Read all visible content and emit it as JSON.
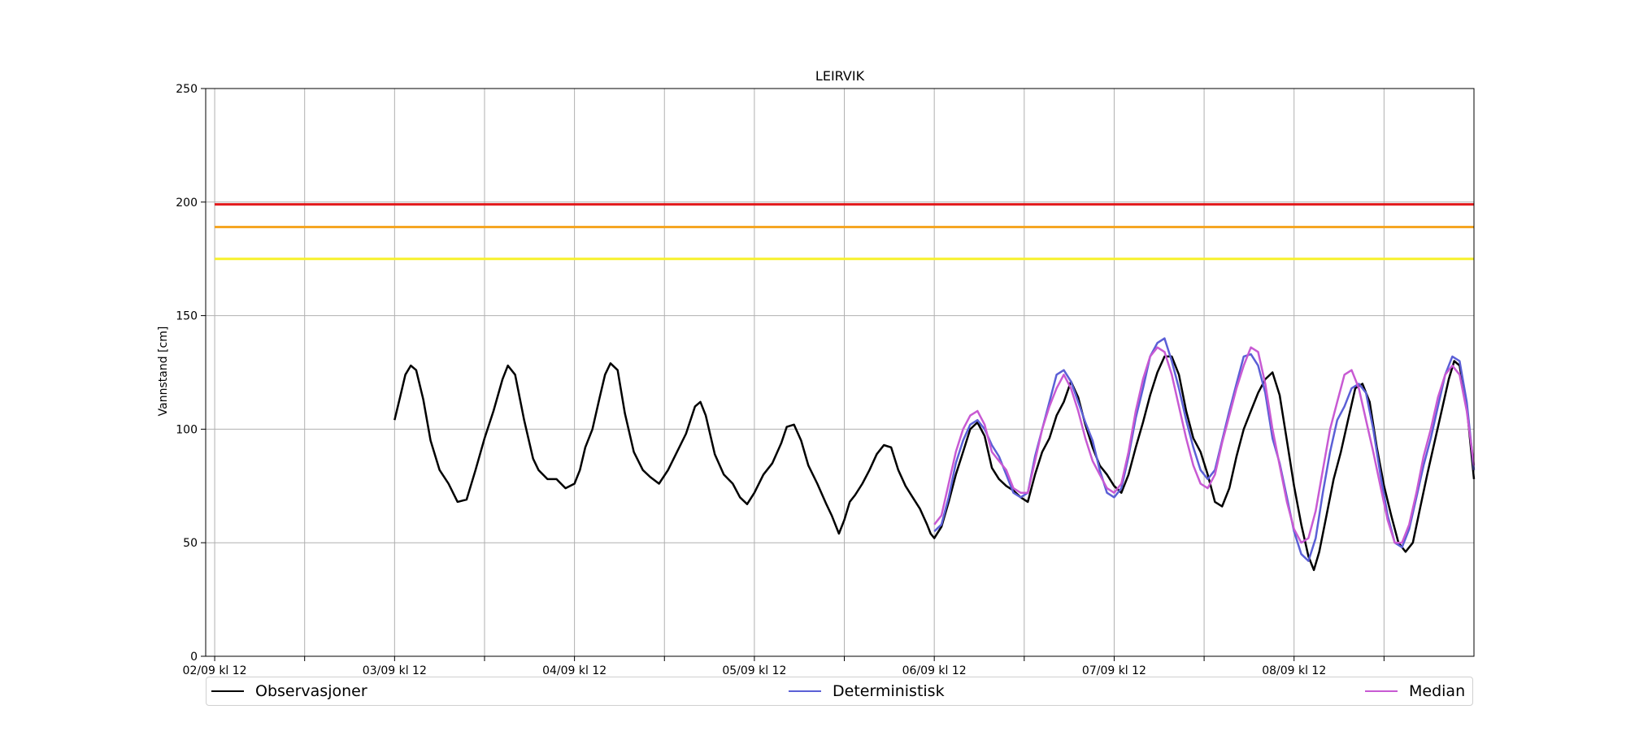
{
  "chart_data": {
    "type": "line",
    "title": "LEIRVIK",
    "xlabel": "",
    "ylabel": "Vannstand [cm]",
    "ylim": [
      0,
      250
    ],
    "yticks": [
      0,
      50,
      100,
      150,
      200,
      250
    ],
    "xlim": [
      -0.05,
      7.0
    ],
    "xticks": [
      {
        "x": 0.0,
        "label": "02/09 kl 12"
      },
      {
        "x": 0.5,
        "label": ""
      },
      {
        "x": 1.0,
        "label": "03/09 kl 12"
      },
      {
        "x": 1.5,
        "label": ""
      },
      {
        "x": 2.0,
        "label": "04/09 kl 12"
      },
      {
        "x": 2.5,
        "label": ""
      },
      {
        "x": 3.0,
        "label": "05/09 kl 12"
      },
      {
        "x": 3.5,
        "label": ""
      },
      {
        "x": 4.0,
        "label": "06/09 kl 12"
      },
      {
        "x": 4.5,
        "label": ""
      },
      {
        "x": 5.0,
        "label": "07/09 kl 12"
      },
      {
        "x": 5.5,
        "label": ""
      },
      {
        "x": 6.0,
        "label": "08/09 kl 12"
      },
      {
        "x": 6.5,
        "label": ""
      }
    ],
    "grid": true,
    "legend_position": "bottom",
    "thresholds": [
      {
        "y": 199,
        "color": "#e31a1c"
      },
      {
        "y": 189,
        "color": "#f5a623"
      },
      {
        "y": 175,
        "color": "#f7f12c"
      }
    ],
    "series": [
      {
        "name": "Observasjoner",
        "color": "#000000",
        "points": [
          [
            1.0,
            104
          ],
          [
            1.03,
            114
          ],
          [
            1.06,
            124
          ],
          [
            1.09,
            128
          ],
          [
            1.12,
            126
          ],
          [
            1.16,
            113
          ],
          [
            1.2,
            95
          ],
          [
            1.25,
            82
          ],
          [
            1.3,
            76
          ],
          [
            1.35,
            68
          ],
          [
            1.4,
            69
          ],
          [
            1.45,
            82
          ],
          [
            1.5,
            96
          ],
          [
            1.55,
            108
          ],
          [
            1.6,
            122
          ],
          [
            1.63,
            128
          ],
          [
            1.67,
            124
          ],
          [
            1.72,
            104
          ],
          [
            1.77,
            87
          ],
          [
            1.8,
            82
          ],
          [
            1.85,
            78
          ],
          [
            1.9,
            78
          ],
          [
            1.95,
            74
          ],
          [
            2.0,
            76
          ],
          [
            2.03,
            82
          ],
          [
            2.06,
            92
          ],
          [
            2.1,
            100
          ],
          [
            2.14,
            114
          ],
          [
            2.17,
            124
          ],
          [
            2.2,
            129
          ],
          [
            2.24,
            126
          ],
          [
            2.28,
            107
          ],
          [
            2.33,
            90
          ],
          [
            2.38,
            82
          ],
          [
            2.42,
            79
          ],
          [
            2.47,
            76
          ],
          [
            2.52,
            82
          ],
          [
            2.57,
            90
          ],
          [
            2.62,
            98
          ],
          [
            2.67,
            110
          ],
          [
            2.7,
            112
          ],
          [
            2.73,
            106
          ],
          [
            2.78,
            89
          ],
          [
            2.83,
            80
          ],
          [
            2.88,
            76
          ],
          [
            2.92,
            70
          ],
          [
            2.96,
            67
          ],
          [
            3.0,
            72
          ],
          [
            3.05,
            80
          ],
          [
            3.1,
            85
          ],
          [
            3.15,
            94
          ],
          [
            3.18,
            101
          ],
          [
            3.22,
            102
          ],
          [
            3.26,
            95
          ],
          [
            3.3,
            84
          ],
          [
            3.35,
            76
          ],
          [
            3.4,
            67
          ],
          [
            3.43,
            62
          ],
          [
            3.47,
            54
          ],
          [
            3.5,
            60
          ],
          [
            3.53,
            68
          ],
          [
            3.56,
            71
          ],
          [
            3.6,
            76
          ],
          [
            3.64,
            82
          ],
          [
            3.68,
            89
          ],
          [
            3.72,
            93
          ],
          [
            3.76,
            92
          ],
          [
            3.8,
            82
          ],
          [
            3.84,
            75
          ],
          [
            3.88,
            70
          ],
          [
            3.92,
            65
          ],
          [
            3.96,
            58
          ],
          [
            3.98,
            54
          ],
          [
            4.0,
            52
          ],
          [
            4.04,
            57
          ],
          [
            4.08,
            68
          ],
          [
            4.12,
            80
          ],
          [
            4.16,
            90
          ],
          [
            4.2,
            100
          ],
          [
            4.24,
            103
          ],
          [
            4.28,
            97
          ],
          [
            4.32,
            83
          ],
          [
            4.36,
            78
          ],
          [
            4.4,
            75
          ],
          [
            4.44,
            73
          ],
          [
            4.48,
            70
          ],
          [
            4.52,
            68
          ],
          [
            4.56,
            80
          ],
          [
            4.6,
            90
          ],
          [
            4.64,
            96
          ],
          [
            4.68,
            106
          ],
          [
            4.72,
            112
          ],
          [
            4.76,
            121
          ],
          [
            4.8,
            114
          ],
          [
            4.84,
            102
          ],
          [
            4.88,
            92
          ],
          [
            4.92,
            84
          ],
          [
            4.96,
            80
          ],
          [
            5.0,
            75
          ],
          [
            5.04,
            72
          ],
          [
            5.08,
            80
          ],
          [
            5.12,
            92
          ],
          [
            5.16,
            103
          ],
          [
            5.2,
            115
          ],
          [
            5.24,
            125
          ],
          [
            5.28,
            132
          ],
          [
            5.32,
            132
          ],
          [
            5.36,
            124
          ],
          [
            5.4,
            108
          ],
          [
            5.44,
            96
          ],
          [
            5.48,
            90
          ],
          [
            5.52,
            80
          ],
          [
            5.56,
            68
          ],
          [
            5.6,
            66
          ],
          [
            5.64,
            74
          ],
          [
            5.68,
            88
          ],
          [
            5.72,
            100
          ],
          [
            5.76,
            108
          ],
          [
            5.8,
            116
          ],
          [
            5.84,
            122
          ],
          [
            5.88,
            125
          ],
          [
            5.92,
            115
          ],
          [
            5.96,
            95
          ],
          [
            6.0,
            75
          ],
          [
            6.04,
            58
          ],
          [
            6.08,
            44
          ],
          [
            6.11,
            38
          ],
          [
            6.14,
            46
          ],
          [
            6.18,
            62
          ],
          [
            6.22,
            78
          ],
          [
            6.26,
            90
          ],
          [
            6.3,
            104
          ],
          [
            6.34,
            118
          ],
          [
            6.38,
            120
          ],
          [
            6.42,
            112
          ],
          [
            6.46,
            92
          ],
          [
            6.5,
            75
          ],
          [
            6.54,
            62
          ],
          [
            6.58,
            50
          ],
          [
            6.62,
            46
          ],
          [
            6.66,
            50
          ],
          [
            6.7,
            65
          ],
          [
            6.74,
            80
          ],
          [
            6.78,
            94
          ],
          [
            6.82,
            108
          ],
          [
            6.86,
            122
          ],
          [
            6.89,
            130
          ],
          [
            6.92,
            128
          ],
          [
            6.96,
            110
          ],
          [
            7.0,
            78
          ]
        ]
      },
      {
        "name": "Deterministisk",
        "color": "#5b5fd6",
        "points": [
          [
            4.0,
            55
          ],
          [
            4.04,
            58
          ],
          [
            4.08,
            70
          ],
          [
            4.12,
            85
          ],
          [
            4.16,
            95
          ],
          [
            4.2,
            102
          ],
          [
            4.24,
            104
          ],
          [
            4.28,
            100
          ],
          [
            4.32,
            93
          ],
          [
            4.36,
            88
          ],
          [
            4.4,
            80
          ],
          [
            4.44,
            72
          ],
          [
            4.48,
            70
          ],
          [
            4.52,
            72
          ],
          [
            4.56,
            88
          ],
          [
            4.6,
            100
          ],
          [
            4.64,
            112
          ],
          [
            4.68,
            124
          ],
          [
            4.72,
            126
          ],
          [
            4.76,
            121
          ],
          [
            4.8,
            112
          ],
          [
            4.84,
            103
          ],
          [
            4.88,
            95
          ],
          [
            4.92,
            82
          ],
          [
            4.96,
            72
          ],
          [
            5.0,
            70
          ],
          [
            5.04,
            74
          ],
          [
            5.08,
            88
          ],
          [
            5.12,
            105
          ],
          [
            5.16,
            118
          ],
          [
            5.2,
            132
          ],
          [
            5.24,
            138
          ],
          [
            5.28,
            140
          ],
          [
            5.32,
            130
          ],
          [
            5.36,
            118
          ],
          [
            5.4,
            104
          ],
          [
            5.44,
            92
          ],
          [
            5.48,
            82
          ],
          [
            5.52,
            78
          ],
          [
            5.56,
            82
          ],
          [
            5.6,
            95
          ],
          [
            5.64,
            108
          ],
          [
            5.68,
            120
          ],
          [
            5.72,
            132
          ],
          [
            5.76,
            133
          ],
          [
            5.8,
            128
          ],
          [
            5.84,
            116
          ],
          [
            5.88,
            96
          ],
          [
            5.92,
            85
          ],
          [
            5.96,
            70
          ],
          [
            6.0,
            55
          ],
          [
            6.04,
            45
          ],
          [
            6.08,
            42
          ],
          [
            6.12,
            52
          ],
          [
            6.16,
            72
          ],
          [
            6.2,
            90
          ],
          [
            6.24,
            104
          ],
          [
            6.28,
            110
          ],
          [
            6.32,
            118
          ],
          [
            6.36,
            120
          ],
          [
            6.4,
            116
          ],
          [
            6.44,
            100
          ],
          [
            6.48,
            80
          ],
          [
            6.52,
            62
          ],
          [
            6.56,
            50
          ],
          [
            6.6,
            48
          ],
          [
            6.64,
            56
          ],
          [
            6.68,
            70
          ],
          [
            6.72,
            84
          ],
          [
            6.76,
            96
          ],
          [
            6.8,
            110
          ],
          [
            6.84,
            124
          ],
          [
            6.88,
            132
          ],
          [
            6.92,
            130
          ],
          [
            6.96,
            112
          ],
          [
            7.0,
            82
          ]
        ]
      },
      {
        "name": "Median",
        "color": "#c85ad3",
        "points": [
          [
            4.0,
            58
          ],
          [
            4.04,
            62
          ],
          [
            4.08,
            76
          ],
          [
            4.12,
            90
          ],
          [
            4.16,
            100
          ],
          [
            4.2,
            106
          ],
          [
            4.24,
            108
          ],
          [
            4.28,
            102
          ],
          [
            4.32,
            90
          ],
          [
            4.36,
            86
          ],
          [
            4.4,
            82
          ],
          [
            4.44,
            74
          ],
          [
            4.48,
            72
          ],
          [
            4.52,
            72
          ],
          [
            4.56,
            86
          ],
          [
            4.6,
            100
          ],
          [
            4.64,
            110
          ],
          [
            4.68,
            118
          ],
          [
            4.72,
            124
          ],
          [
            4.76,
            118
          ],
          [
            4.8,
            108
          ],
          [
            4.84,
            96
          ],
          [
            4.88,
            86
          ],
          [
            4.92,
            80
          ],
          [
            4.96,
            74
          ],
          [
            5.0,
            72
          ],
          [
            5.04,
            76
          ],
          [
            5.08,
            90
          ],
          [
            5.12,
            108
          ],
          [
            5.16,
            122
          ],
          [
            5.2,
            132
          ],
          [
            5.24,
            136
          ],
          [
            5.28,
            134
          ],
          [
            5.32,
            124
          ],
          [
            5.36,
            110
          ],
          [
            5.4,
            96
          ],
          [
            5.44,
            84
          ],
          [
            5.48,
            76
          ],
          [
            5.52,
            74
          ],
          [
            5.56,
            80
          ],
          [
            5.6,
            94
          ],
          [
            5.64,
            106
          ],
          [
            5.68,
            118
          ],
          [
            5.72,
            128
          ],
          [
            5.76,
            136
          ],
          [
            5.8,
            134
          ],
          [
            5.84,
            120
          ],
          [
            5.88,
            100
          ],
          [
            5.92,
            84
          ],
          [
            5.96,
            68
          ],
          [
            6.0,
            56
          ],
          [
            6.04,
            50
          ],
          [
            6.08,
            52
          ],
          [
            6.12,
            64
          ],
          [
            6.16,
            82
          ],
          [
            6.2,
            100
          ],
          [
            6.24,
            112
          ],
          [
            6.28,
            124
          ],
          [
            6.32,
            126
          ],
          [
            6.36,
            118
          ],
          [
            6.4,
            104
          ],
          [
            6.44,
            90
          ],
          [
            6.48,
            75
          ],
          [
            6.52,
            60
          ],
          [
            6.56,
            50
          ],
          [
            6.6,
            50
          ],
          [
            6.64,
            58
          ],
          [
            6.68,
            72
          ],
          [
            6.72,
            88
          ],
          [
            6.76,
            100
          ],
          [
            6.8,
            114
          ],
          [
            6.84,
            124
          ],
          [
            6.88,
            128
          ],
          [
            6.92,
            124
          ],
          [
            6.96,
            108
          ],
          [
            7.0,
            84
          ]
        ]
      }
    ]
  }
}
